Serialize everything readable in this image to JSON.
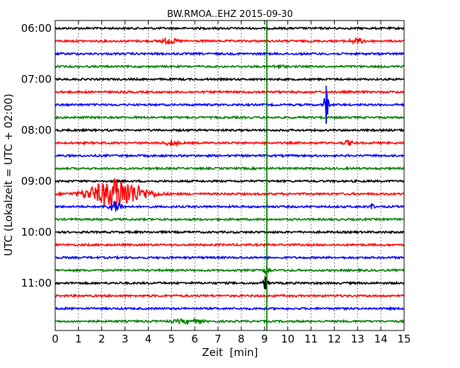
{
  "chart_data": {
    "type": "line",
    "title": "BW.RMOA..EHZ 2015-09-30",
    "xlabel": "Zeit  [min]",
    "ylabel": "UTC (Lokalzeit = UTC + 02:00)",
    "xlim": [
      0,
      15
    ],
    "x_ticks": [
      "0",
      "1",
      "2",
      "3",
      "4",
      "5",
      "6",
      "7",
      "8",
      "9",
      "10",
      "11",
      "12",
      "13",
      "14",
      "15"
    ],
    "y_tick_labels": [
      "06:00",
      "07:00",
      "08:00",
      "09:00",
      "10:00",
      "11:00"
    ],
    "trace_count": 24,
    "trace_interval_min": 15,
    "trace_colors": [
      "#000000",
      "#ff0000",
      "#0000ff",
      "#008000"
    ],
    "grid": true,
    "marker_line": {
      "x": 9.1,
      "color": "#008000"
    },
    "events": [
      {
        "trace": 1,
        "x": 4.9,
        "amp": 0.5,
        "dur": 0.5
      },
      {
        "trace": 1,
        "x": 13.0,
        "amp": 0.5,
        "dur": 0.5
      },
      {
        "trace": 3,
        "x": 9.6,
        "amp": 0.35,
        "dur": 0.3
      },
      {
        "trace": 6,
        "x": 11.65,
        "amp": 4.5,
        "dur": 0.12
      },
      {
        "trace": 9,
        "x": 5.0,
        "amp": 0.5,
        "dur": 0.4
      },
      {
        "trace": 9,
        "x": 12.6,
        "amp": 0.4,
        "dur": 0.3
      },
      {
        "trace": 13,
        "x": 2.65,
        "amp": 3.5,
        "dur": 1.6
      },
      {
        "trace": 14,
        "x": 2.6,
        "amp": 1.2,
        "dur": 0.4
      },
      {
        "trace": 14,
        "x": 13.6,
        "amp": 0.6,
        "dur": 0.12
      },
      {
        "trace": 19,
        "x": 9.1,
        "amp": 1.2,
        "dur": 0.15
      },
      {
        "trace": 20,
        "x": 9.05,
        "amp": 1.5,
        "dur": 0.15
      },
      {
        "trace": 23,
        "x": 5.7,
        "amp": 0.4,
        "dur": 0.8
      }
    ]
  }
}
